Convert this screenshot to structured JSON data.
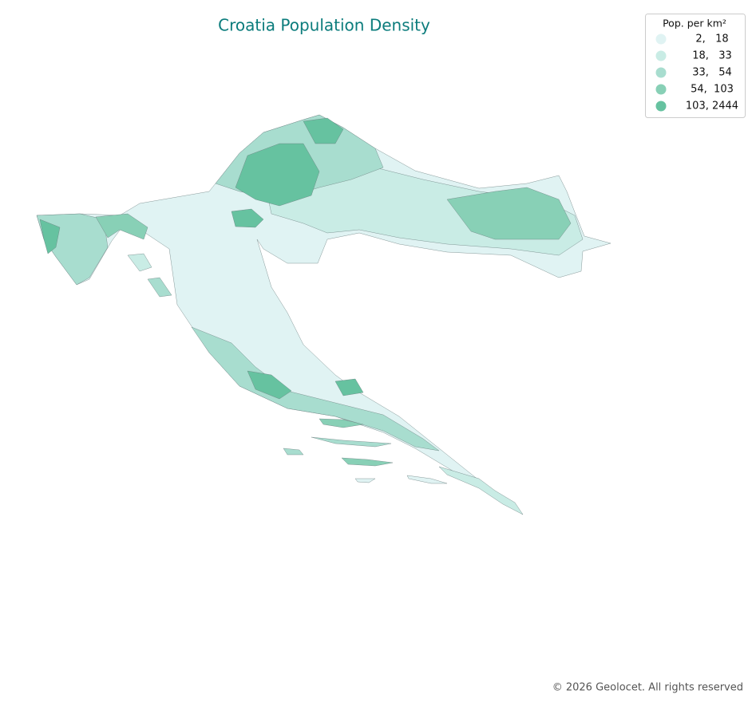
{
  "map": {
    "title": "Croatia Population Density",
    "legend": {
      "title": "Pop. per km²",
      "items": [
        {
          "label": "2,   18",
          "color": "#e0f3f3"
        },
        {
          "label": "18,   33",
          "color": "#c9ece5"
        },
        {
          "label": "33,   54",
          "color": "#a8ddcf"
        },
        {
          "label": "54,  103",
          "color": "#88d0b6"
        },
        {
          "label": "103, 2444",
          "color": "#66c2a0"
        }
      ]
    },
    "footer": "© 2026 Geolocet. All rights reserved"
  }
}
